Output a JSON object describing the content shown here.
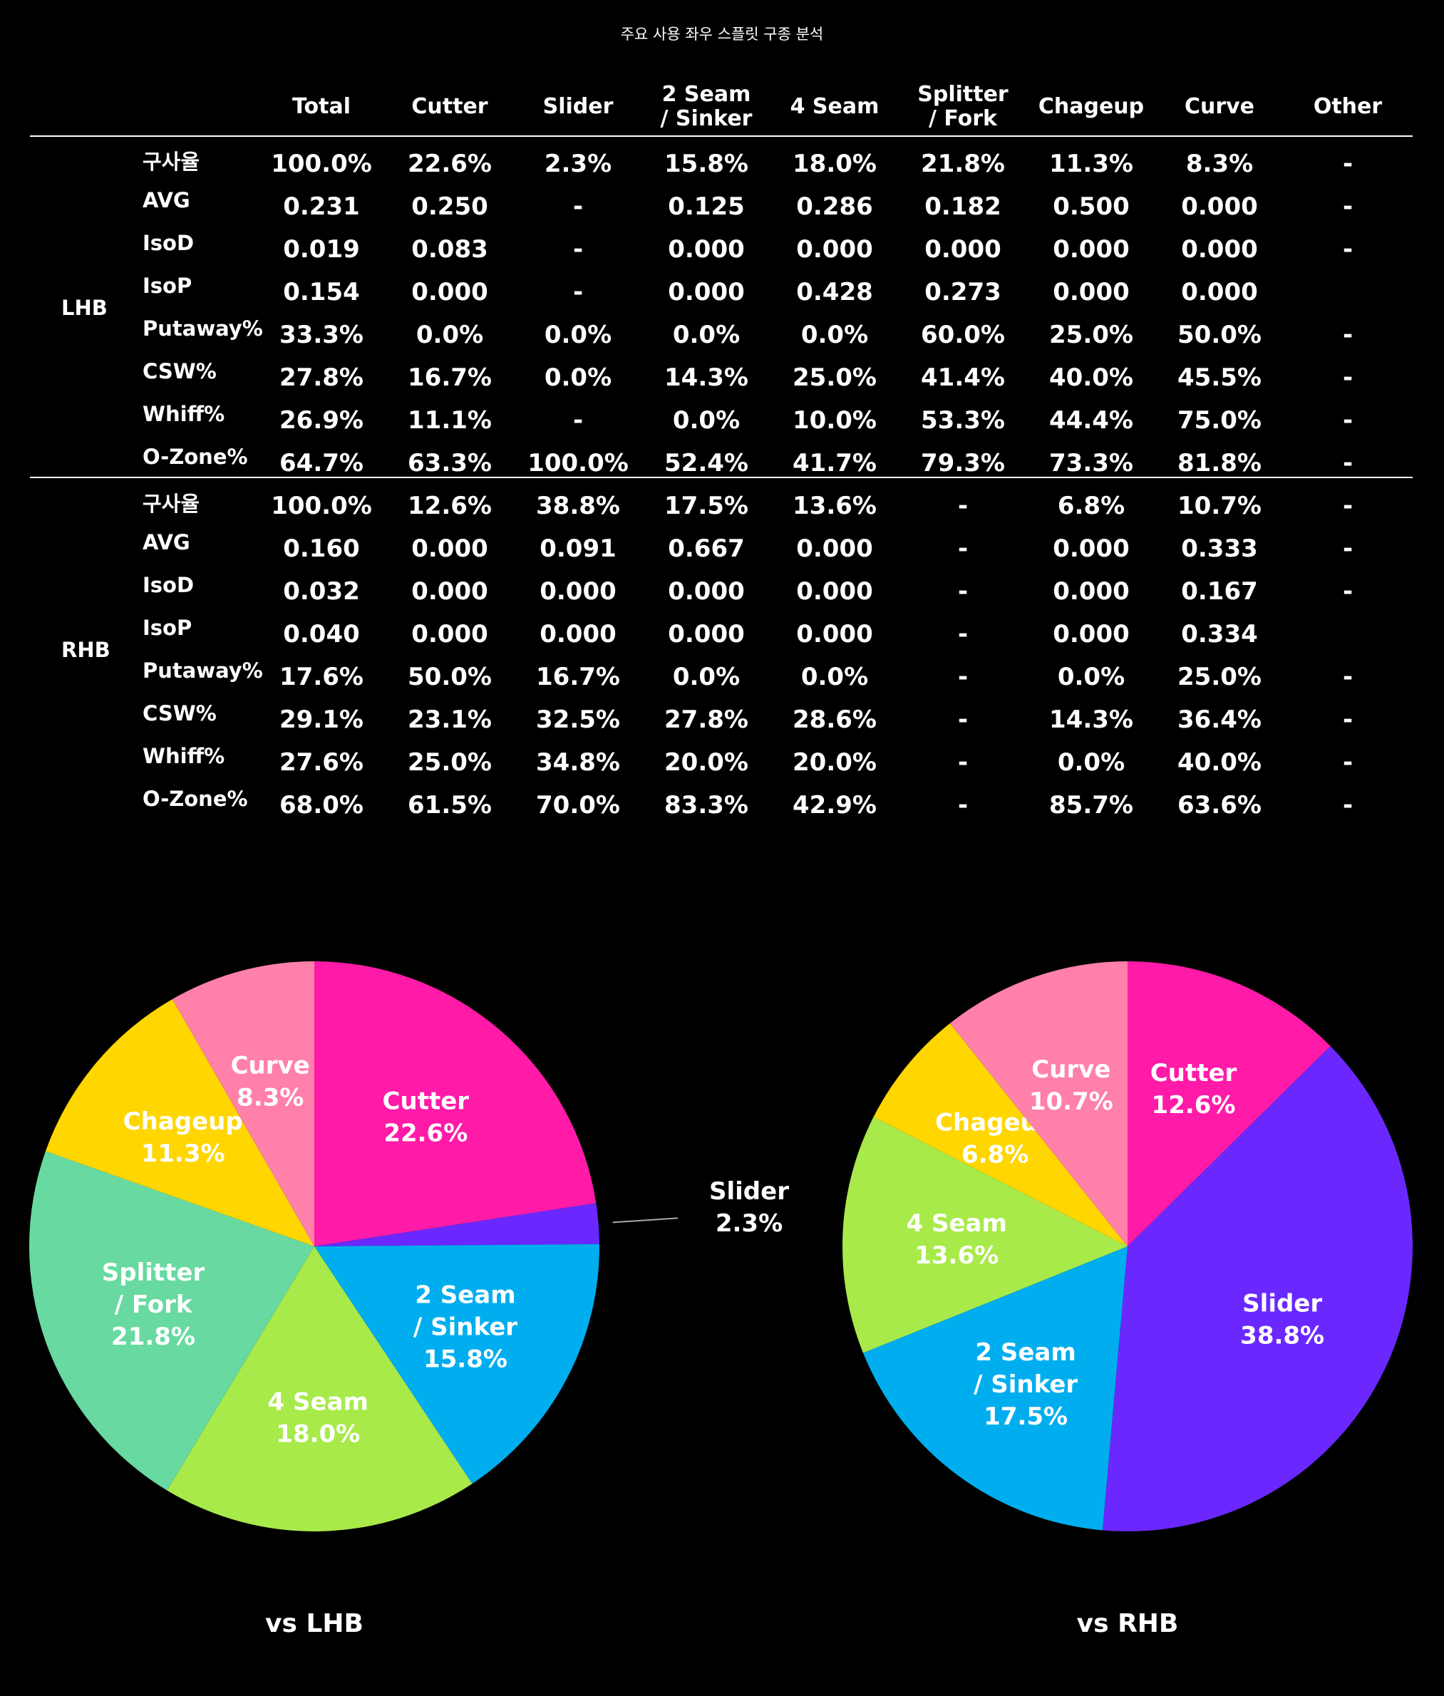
{
  "title": "주요 사용 좌우 스플릿 구종 분석",
  "columns": [
    "Total",
    "Cutter",
    "Slider",
    "2 Seam\n/ Sinker",
    "4 Seam",
    "Splitter\n/ Fork",
    "Chageup",
    "Curve",
    "Other"
  ],
  "groups": [
    {
      "label": "LHB",
      "rows": [
        {
          "metric": "구사율",
          "values": [
            "100.0%",
            "22.6%",
            "2.3%",
            "15.8%",
            "18.0%",
            "21.8%",
            "11.3%",
            "8.3%",
            "-"
          ]
        },
        {
          "metric": "AVG",
          "values": [
            "0.231",
            "0.250",
            "-",
            "0.125",
            "0.286",
            "0.182",
            "0.500",
            "0.000",
            "-"
          ]
        },
        {
          "metric": "IsoD",
          "values": [
            "0.019",
            "0.083",
            "-",
            "0.000",
            "0.000",
            "0.000",
            "0.000",
            "0.000",
            "-"
          ]
        },
        {
          "metric": "IsoP",
          "values": [
            "0.154",
            "0.000",
            "-",
            "0.000",
            "0.428",
            "0.273",
            "0.000",
            "0.000",
            ""
          ]
        },
        {
          "metric": "Putaway%",
          "values": [
            "33.3%",
            "0.0%",
            "0.0%",
            "0.0%",
            "0.0%",
            "60.0%",
            "25.0%",
            "50.0%",
            "-"
          ]
        },
        {
          "metric": "CSW%",
          "values": [
            "27.8%",
            "16.7%",
            "0.0%",
            "14.3%",
            "25.0%",
            "41.4%",
            "40.0%",
            "45.5%",
            "-"
          ]
        },
        {
          "metric": "Whiff%",
          "values": [
            "26.9%",
            "11.1%",
            "-",
            "0.0%",
            "10.0%",
            "53.3%",
            "44.4%",
            "75.0%",
            "-"
          ]
        },
        {
          "metric": "O-Zone%",
          "values": [
            "64.7%",
            "63.3%",
            "100.0%",
            "52.4%",
            "41.7%",
            "79.3%",
            "73.3%",
            "81.8%",
            "-"
          ]
        }
      ]
    },
    {
      "label": "RHB",
      "rows": [
        {
          "metric": "구사율",
          "values": [
            "100.0%",
            "12.6%",
            "38.8%",
            "17.5%",
            "13.6%",
            "-",
            "6.8%",
            "10.7%",
            "-"
          ]
        },
        {
          "metric": "AVG",
          "values": [
            "0.160",
            "0.000",
            "0.091",
            "0.667",
            "0.000",
            "-",
            "0.000",
            "0.333",
            "-"
          ]
        },
        {
          "metric": "IsoD",
          "values": [
            "0.032",
            "0.000",
            "0.000",
            "0.000",
            "0.000",
            "-",
            "0.000",
            "0.167",
            "-"
          ]
        },
        {
          "metric": "IsoP",
          "values": [
            "0.040",
            "0.000",
            "0.000",
            "0.000",
            "0.000",
            "-",
            "0.000",
            "0.334",
            ""
          ]
        },
        {
          "metric": "Putaway%",
          "values": [
            "17.6%",
            "50.0%",
            "16.7%",
            "0.0%",
            "0.0%",
            "-",
            "0.0%",
            "25.0%",
            "-"
          ]
        },
        {
          "metric": "CSW%",
          "values": [
            "29.1%",
            "23.1%",
            "32.5%",
            "27.8%",
            "28.6%",
            "-",
            "14.3%",
            "36.4%",
            "-"
          ]
        },
        {
          "metric": "Whiff%",
          "values": [
            "27.6%",
            "25.0%",
            "34.8%",
            "20.0%",
            "20.0%",
            "-",
            "0.0%",
            "40.0%",
            "-"
          ]
        },
        {
          "metric": "O-Zone%",
          "values": [
            "68.0%",
            "61.5%",
            "70.0%",
            "83.3%",
            "42.9%",
            "-",
            "85.7%",
            "63.6%",
            "-"
          ]
        }
      ]
    }
  ],
  "chart_data": [
    {
      "type": "pie",
      "title": "vs LHB",
      "slices": [
        {
          "label": "Cutter",
          "value": 22.6,
          "display": "22.6%",
          "color": "#ff1aa8"
        },
        {
          "label": "Slider",
          "value": 2.3,
          "display": "2.3%",
          "color": "#6a28ff",
          "label_outside": true
        },
        {
          "label": "2 Seam\n/ Sinker",
          "value": 15.8,
          "display": "15.8%",
          "color": "#00aeef"
        },
        {
          "label": "4 Seam",
          "value": 18.0,
          "display": "18.0%",
          "color": "#a8ea4a"
        },
        {
          "label": "Splitter\n/ Fork",
          "value": 21.8,
          "display": "21.8%",
          "color": "#68d9a0"
        },
        {
          "label": "Chageup",
          "value": 11.3,
          "display": "11.3%",
          "color": "#ffd600"
        },
        {
          "label": "Curve",
          "value": 8.3,
          "display": "8.3%",
          "color": "#ff80a8"
        }
      ]
    },
    {
      "type": "pie",
      "title": "vs RHB",
      "slices": [
        {
          "label": "Cutter",
          "value": 12.6,
          "display": "12.6%",
          "color": "#ff1aa8"
        },
        {
          "label": "Slider",
          "value": 38.8,
          "display": "38.8%",
          "color": "#6a28ff"
        },
        {
          "label": "2 Seam\n/ Sinker",
          "value": 17.5,
          "display": "17.5%",
          "color": "#00aeef"
        },
        {
          "label": "4 Seam",
          "value": 13.6,
          "display": "13.6%",
          "color": "#a8ea4a"
        },
        {
          "label": "Chageup",
          "value": 6.8,
          "display": "6.8%",
          "color": "#ffd600"
        },
        {
          "label": "Curve",
          "value": 10.7,
          "display": "10.7%",
          "color": "#ff80a8"
        }
      ]
    }
  ]
}
